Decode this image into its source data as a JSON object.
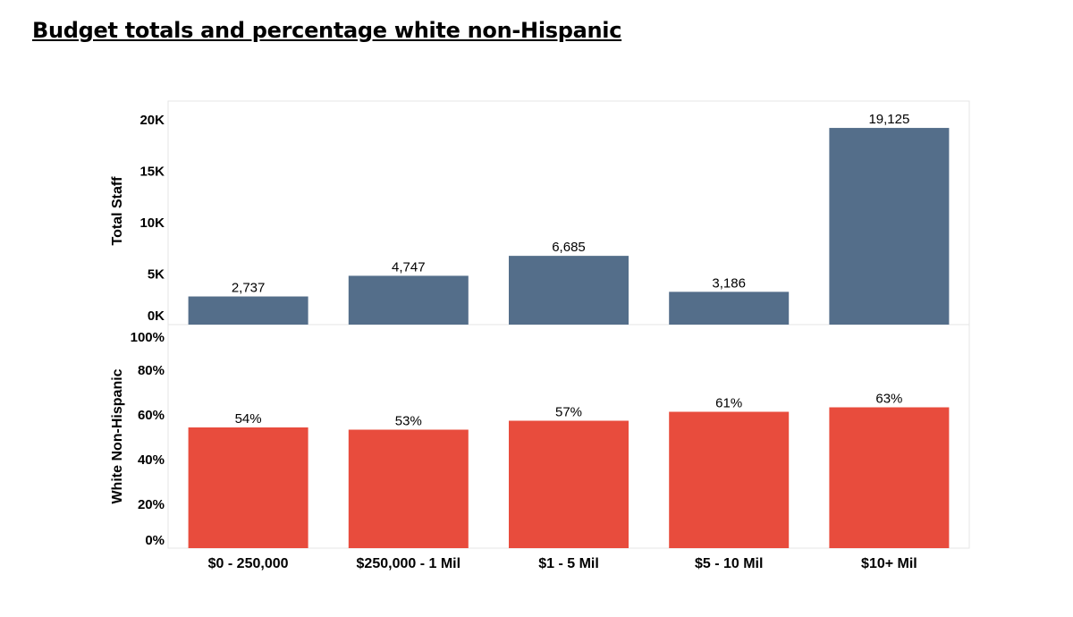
{
  "title": "Budget totals and percentage white non-Hispanic",
  "chart_data": [
    {
      "type": "bar",
      "categories": [
        "$0 - 250,000",
        "$250,000 - 1 Mil",
        "$1 - 5 Mil",
        "$5 - 10 Mil",
        "$10+ Mil"
      ],
      "values": [
        2737,
        4747,
        6685,
        3186,
        19125
      ],
      "data_labels": [
        "2,737",
        "4,747",
        "6,685",
        "3,186",
        "19,125"
      ],
      "ylabel": "Total Staff",
      "ylim": [
        0,
        21000
      ],
      "yticks": [
        0,
        5000,
        10000,
        15000,
        20000
      ],
      "ytick_labels": [
        "0K",
        "5K",
        "10K",
        "15K",
        "20K"
      ],
      "color": "#546E8A"
    },
    {
      "type": "bar",
      "categories": [
        "$0 - 250,000",
        "$250,000 - 1 Mil",
        "$1 - 5 Mil",
        "$5 - 10 Mil",
        "$10+ Mil"
      ],
      "values": [
        54,
        53,
        57,
        61,
        63
      ],
      "data_labels": [
        "54%",
        "53%",
        "57%",
        "61%",
        "63%"
      ],
      "ylabel": "White Non-Hispanic",
      "ylim": [
        0,
        100
      ],
      "yticks": [
        0,
        20,
        40,
        60,
        80,
        100
      ],
      "ytick_labels": [
        "0%",
        "20%",
        "40%",
        "60%",
        "80%",
        "100%"
      ],
      "color": "#E84C3D"
    }
  ]
}
